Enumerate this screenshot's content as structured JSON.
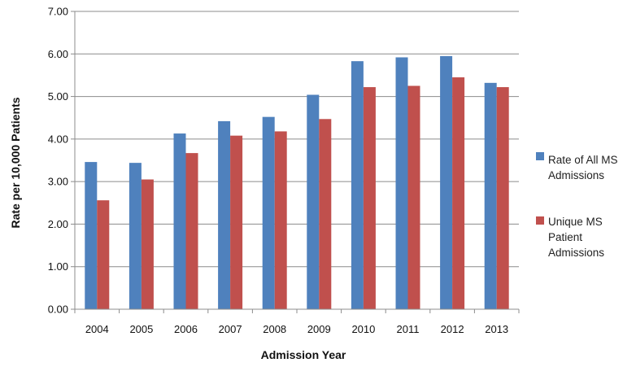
{
  "chart_data": {
    "type": "bar",
    "title": "",
    "xlabel": "Admission Year",
    "ylabel": "Rate per 10,000  Patients",
    "ylim": [
      0,
      7
    ],
    "yticks": [
      "0.00",
      "1.00",
      "2.00",
      "3.00",
      "4.00",
      "5.00",
      "6.00",
      "7.00"
    ],
    "grid": true,
    "legend_position": "right",
    "categories": [
      "2004",
      "2005",
      "2006",
      "2007",
      "2008",
      "2009",
      "2010",
      "2011",
      "2012",
      "2013"
    ],
    "series": [
      {
        "name": "Rate of All MS Admissions",
        "legend_lines": [
          "Rate of All MS",
          "Admissions"
        ],
        "color": "#4F81BD",
        "values": [
          3.46,
          3.44,
          4.13,
          4.42,
          4.52,
          5.04,
          5.83,
          5.92,
          5.95,
          5.32
        ]
      },
      {
        "name": "Unique MS Patient Admissions",
        "legend_lines": [
          "Unique MS",
          "Patient",
          "Admissions"
        ],
        "color": "#C0504D",
        "values": [
          2.56,
          3.05,
          3.67,
          4.08,
          4.18,
          4.47,
          5.22,
          5.25,
          5.45,
          5.22
        ]
      }
    ]
  }
}
